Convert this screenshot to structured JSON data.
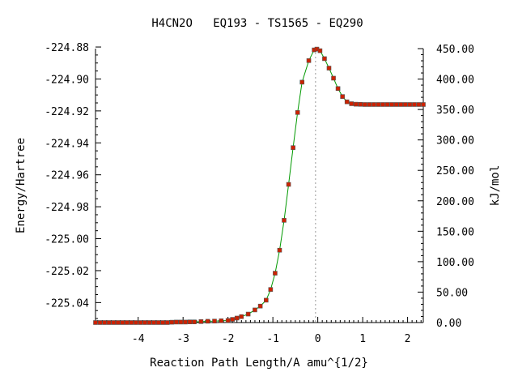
{
  "chart_data": {
    "type": "line",
    "title": "H4CN2O   EQ193 - TS1565 - EQ290",
    "xlabel": "Reaction Path Length/A amu^{1/2}",
    "ylabel": "Energy/Hartree",
    "y2label": "kJ/mol",
    "xlim": [
      -4.95,
      2.35
    ],
    "ylim": [
      -225.0525,
      -224.881
    ],
    "y2lim": [
      0.0,
      450.0
    ],
    "x_ticks": [
      -4,
      -3,
      -2,
      -1,
      0,
      1,
      2
    ],
    "x_tick_labels": [
      "-4",
      "-3",
      "-2",
      "-1",
      "0",
      "1",
      "2"
    ],
    "y_ticks": [
      -224.88,
      -224.9,
      -224.92,
      -224.94,
      -224.96,
      -224.98,
      -225.0,
      -225.02,
      -225.04
    ],
    "y_tick_labels": [
      "-224.88",
      "-224.90",
      "-224.92",
      "-224.94",
      "-224.96",
      "-224.98",
      "-225.00",
      "-225.02",
      "-225.04"
    ],
    "y2_ticks": [
      450,
      400,
      350,
      300,
      250,
      200,
      150,
      100,
      50,
      0
    ],
    "y2_tick_labels": [
      "450.00",
      "400.00",
      "350.00",
      "300.00",
      "250.00",
      "200.00",
      "150.00",
      "100.00",
      "50.00",
      "0.00"
    ],
    "ts_x": -0.05,
    "grid": false,
    "colors": {
      "line": "#009900",
      "marker": "#cc2200",
      "marker_edge": "#555555",
      "ts_line": "#999999",
      "axis": "#000000"
    },
    "series": [
      {
        "x": [
          -4.95,
          -4.85,
          -4.75,
          -4.65,
          -4.55,
          -4.45,
          -4.35,
          -4.25,
          -4.15,
          -4.05,
          -3.95,
          -3.85,
          -3.75,
          -3.65,
          -3.55,
          -3.45,
          -3.35,
          -3.25,
          -3.15,
          -3.05,
          -2.95,
          -2.85,
          -2.75,
          -2.6,
          -2.45,
          -2.3,
          -2.15,
          -2.0,
          -1.9,
          -1.8,
          -1.7,
          -1.55,
          -1.4,
          -1.28,
          -1.15,
          -1.05,
          -0.95,
          -0.85,
          -0.75,
          -0.65,
          -0.55,
          -0.45,
          -0.35,
          -0.2,
          -0.08,
          -0.02,
          0.05,
          0.15,
          0.25,
          0.35,
          0.45,
          0.55,
          0.65,
          0.75,
          0.85,
          0.95,
          1.05,
          1.15,
          1.25,
          1.35,
          1.45,
          1.55,
          1.65,
          1.75,
          1.85,
          1.95,
          2.05,
          2.15,
          2.25,
          2.35
        ],
        "y": [
          -225.0525,
          -225.0525,
          -225.0525,
          -225.0525,
          -225.0525,
          -225.0525,
          -225.0525,
          -225.0525,
          -225.0525,
          -225.0525,
          -225.0525,
          -225.0525,
          -225.0525,
          -225.0525,
          -225.0525,
          -225.0525,
          -225.0525,
          -225.0523,
          -225.0522,
          -225.0522,
          -225.0522,
          -225.0521,
          -225.0521,
          -225.0519,
          -225.0517,
          -225.0516,
          -225.0514,
          -225.0512,
          -225.0505,
          -225.0497,
          -225.0488,
          -225.0472,
          -225.0446,
          -225.0422,
          -225.0385,
          -225.0318,
          -225.0216,
          -225.0072,
          -224.9885,
          -224.966,
          -224.943,
          -224.921,
          -224.902,
          -224.8885,
          -224.8818,
          -224.8813,
          -224.8823,
          -224.8873,
          -224.8932,
          -224.8995,
          -224.906,
          -224.911,
          -224.9143,
          -224.9155,
          -224.9158,
          -224.9159,
          -224.916,
          -224.916,
          -224.916,
          -224.916,
          -224.916,
          -224.916,
          -224.916,
          -224.916,
          -224.916,
          -224.916,
          -224.916,
          -224.916,
          -224.916,
          -224.916
        ]
      }
    ]
  }
}
